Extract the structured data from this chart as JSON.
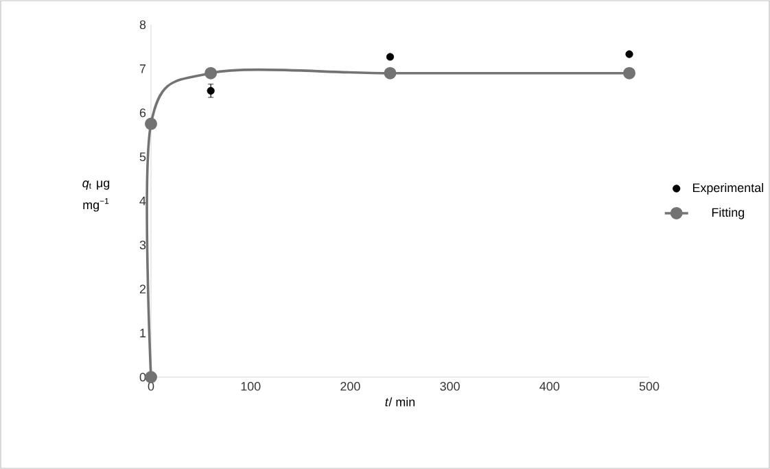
{
  "chart_data": {
    "type": "scatter",
    "xlabel": "*t*/ min",
    "ylabel": "*q*$_{t}$ μg mg$^{−1}$",
    "xlim": [
      0,
      500
    ],
    "xticks": [
      0,
      100,
      200,
      300,
      400,
      500
    ],
    "ylim": [
      0,
      8
    ],
    "yticks": [
      0,
      1,
      2,
      3,
      4,
      5,
      6,
      7,
      8
    ],
    "grid": false,
    "legend": "right",
    "marker": "circle",
    "series": [
      {
        "name": "Experimental",
        "color": "#000000",
        "x": [
          60,
          240,
          480
        ],
        "values": [
          6.5,
          7.27,
          7.33
        ],
        "errors": [
          0.15,
          null,
          null
        ]
      },
      {
        "name": "Fitting",
        "type": "line",
        "color": "#737373",
        "x": [
          0,
          0,
          60,
          240,
          480
        ],
        "values": [
          0,
          5.75,
          6.9,
          6.9,
          6.9
        ]
      }
    ]
  }
}
